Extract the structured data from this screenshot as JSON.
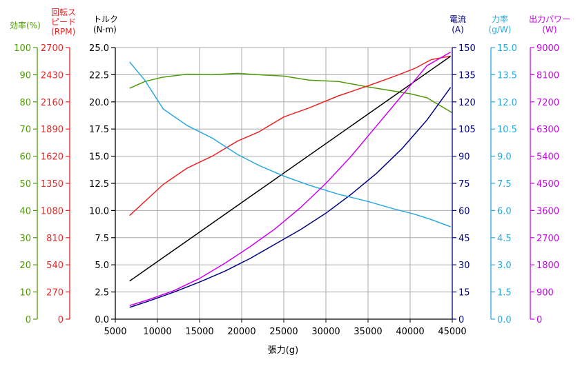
{
  "chart_data": {
    "type": "line",
    "xlabel": "張力(g)",
    "x_ticks": [
      5000,
      10000,
      15000,
      20000,
      25000,
      30000,
      35000,
      40000,
      45000
    ],
    "xlim": [
      5000,
      45000
    ],
    "grid": true,
    "axes": [
      {
        "id": "efficiency",
        "label_lines": [
          "効率(%)"
        ],
        "color": "#4e9a06",
        "side": "left",
        "range": [
          0,
          100
        ],
        "ticks": [
          "0",
          "10",
          "20",
          "30",
          "40",
          "50",
          "60",
          "70",
          "80",
          "90",
          "100"
        ]
      },
      {
        "id": "rpm",
        "label_lines": [
          "回転ス",
          "ピード",
          "(RPM)"
        ],
        "color": "#ee2222",
        "side": "left",
        "range": [
          0,
          2700
        ],
        "ticks": [
          "0",
          "270",
          "540",
          "810",
          "1080",
          "1350",
          "1620",
          "1890",
          "2160",
          "2430",
          "2700"
        ]
      },
      {
        "id": "torque",
        "label_lines": [
          "トルク",
          "(N·m)"
        ],
        "color": "#000000",
        "side": "left",
        "range": [
          0,
          25
        ],
        "ticks": [
          "0.0",
          "2.5",
          "5.0",
          "7.5",
          "10.0",
          "12.5",
          "15.0",
          "17.5",
          "20.0",
          "22.5",
          "25.0"
        ]
      },
      {
        "id": "current",
        "label_lines": [
          "電流",
          "(A)"
        ],
        "color": "#000080",
        "side": "right",
        "range": [
          0,
          150
        ],
        "ticks": [
          "0",
          "15",
          "30",
          "45",
          "60",
          "75",
          "90",
          "105",
          "120",
          "135",
          "150"
        ]
      },
      {
        "id": "force_ratio",
        "label_lines": [
          "力率",
          "(g/W)"
        ],
        "color": "#29a8e0",
        "side": "right",
        "range": [
          0,
          15
        ],
        "ticks": [
          "0.0",
          "1.5",
          "3.0",
          "4.5",
          "6.0",
          "7.5",
          "9.0",
          "10.5",
          "12.0",
          "13.5",
          "15.0"
        ]
      },
      {
        "id": "power",
        "label_lines": [
          "出力パワー",
          "(W)"
        ],
        "color": "#cc00ee",
        "side": "right",
        "range": [
          0,
          9000
        ],
        "ticks": [
          "0",
          "900",
          "1800",
          "2700",
          "3600",
          "4500",
          "5400",
          "6300",
          "7200",
          "8100",
          "9000"
        ]
      }
    ],
    "series": [
      {
        "axis": "efficiency",
        "color": "#4e9a06",
        "points": [
          [
            6700,
            85
          ],
          [
            8500,
            87.5
          ],
          [
            10500,
            89
          ],
          [
            13500,
            90.2
          ],
          [
            16500,
            90
          ],
          [
            19500,
            90.5
          ],
          [
            22000,
            90
          ],
          [
            25000,
            89.5
          ],
          [
            28000,
            88
          ],
          [
            31500,
            87.5
          ],
          [
            35000,
            85.5
          ],
          [
            38000,
            84
          ],
          [
            40000,
            83
          ],
          [
            42000,
            81.5
          ],
          [
            45000,
            76
          ]
        ]
      },
      {
        "axis": "rpm",
        "color": "#ee2222",
        "points": [
          [
            6700,
            1030
          ],
          [
            10700,
            1340
          ],
          [
            13500,
            1500
          ],
          [
            16500,
            1620
          ],
          [
            19500,
            1770
          ],
          [
            22000,
            1860
          ],
          [
            25000,
            2010
          ],
          [
            28000,
            2100
          ],
          [
            31500,
            2220
          ],
          [
            35000,
            2320
          ],
          [
            38000,
            2410
          ],
          [
            40500,
            2490
          ],
          [
            42500,
            2580
          ],
          [
            44800,
            2615
          ]
        ]
      },
      {
        "axis": "torque",
        "color": "#000000",
        "points": [
          [
            6700,
            3.5
          ],
          [
            44800,
            24.2
          ]
        ]
      },
      {
        "axis": "current",
        "color": "#000080",
        "points": [
          [
            6700,
            6.5
          ],
          [
            9000,
            10
          ],
          [
            12000,
            15
          ],
          [
            15000,
            20.5
          ],
          [
            18000,
            26.5
          ],
          [
            21000,
            33.5
          ],
          [
            24000,
            41.5
          ],
          [
            27000,
            49.5
          ],
          [
            30000,
            58.5
          ],
          [
            33000,
            69
          ],
          [
            36000,
            80.5
          ],
          [
            39000,
            94
          ],
          [
            42000,
            110
          ],
          [
            44800,
            128
          ]
        ]
      },
      {
        "axis": "force_ratio",
        "color": "#29a8e0",
        "points": [
          [
            6700,
            14.2
          ],
          [
            8500,
            13.2
          ],
          [
            10700,
            11.6
          ],
          [
            13500,
            10.7
          ],
          [
            16500,
            10
          ],
          [
            19500,
            9.1
          ],
          [
            22000,
            8.5
          ],
          [
            25000,
            7.9
          ],
          [
            28000,
            7.4
          ],
          [
            31500,
            6.9
          ],
          [
            35000,
            6.5
          ],
          [
            38000,
            6.1
          ],
          [
            40500,
            5.8
          ],
          [
            42500,
            5.5
          ],
          [
            44800,
            5.1
          ]
        ]
      },
      {
        "axis": "power",
        "color": "#cc00ee",
        "points": [
          [
            6700,
            450
          ],
          [
            9000,
            650
          ],
          [
            12000,
            950
          ],
          [
            15000,
            1350
          ],
          [
            18000,
            1850
          ],
          [
            21000,
            2400
          ],
          [
            24000,
            3000
          ],
          [
            27000,
            3700
          ],
          [
            30000,
            4500
          ],
          [
            33000,
            5400
          ],
          [
            36000,
            6400
          ],
          [
            39000,
            7400
          ],
          [
            42000,
            8400
          ],
          [
            44800,
            8850
          ]
        ]
      }
    ]
  }
}
